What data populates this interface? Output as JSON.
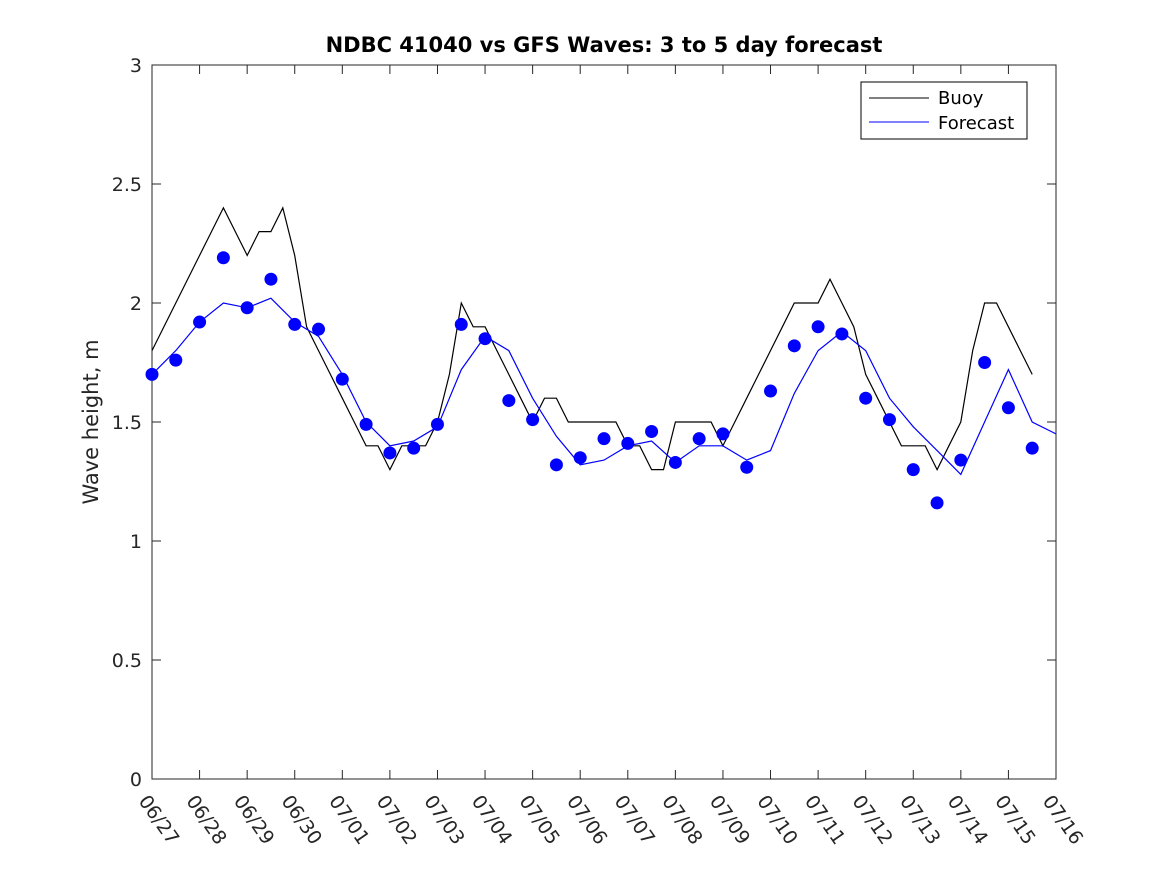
{
  "chart_data": {
    "type": "line",
    "title": "NDBC 41040 vs GFS Waves: 3 to 5 day forecast",
    "xlabel": "",
    "ylabel": "Wave height, m",
    "ylim": [
      0,
      3
    ],
    "yticks": [
      "0",
      "0.5",
      "1",
      "1.5",
      "2",
      "2.5",
      "3"
    ],
    "xlim": [
      "2024-06-27",
      "2024-07-16"
    ],
    "xtick_labels": [
      "06/27",
      "06/28",
      "06/29",
      "06/30",
      "07/01",
      "07/02",
      "07/03",
      "07/04",
      "07/05",
      "07/06",
      "07/07",
      "07/08",
      "07/09",
      "07/10",
      "07/11",
      "07/12",
      "07/13",
      "07/14",
      "07/15",
      "07/16"
    ],
    "grid": false,
    "legend_position": "top-right",
    "legend": [
      "Buoy",
      "Forecast"
    ],
    "colors": {
      "buoy": "#000000",
      "forecast": "#0000ff"
    },
    "series": [
      {
        "name": "Buoy",
        "x": [
          "06/27 00:00",
          "06/27 12:00",
          "06/28 00:00",
          "06/28 06:00",
          "06/28 12:00",
          "06/28 18:00",
          "06/29 00:00",
          "06/29 06:00",
          "06/29 12:00",
          "06/29 18:00",
          "06/30 00:00",
          "06/30 06:00",
          "06/30 12:00",
          "06/30 18:00",
          "07/01 00:00",
          "07/01 06:00",
          "07/01 12:00",
          "07/01 18:00",
          "07/02 00:00",
          "07/02 06:00",
          "07/02 12:00",
          "07/02 18:00",
          "07/03 00:00",
          "07/03 06:00",
          "07/03 12:00",
          "07/03 18:00",
          "07/04 00:00",
          "07/04 06:00",
          "07/04 12:00",
          "07/04 18:00",
          "07/05 00:00",
          "07/05 06:00",
          "07/05 12:00",
          "07/05 18:00",
          "07/06 00:00",
          "07/06 06:00",
          "07/06 12:00",
          "07/06 18:00",
          "07/07 00:00",
          "07/07 06:00",
          "07/07 12:00",
          "07/07 18:00",
          "07/08 00:00",
          "07/08 06:00",
          "07/08 12:00",
          "07/08 18:00",
          "07/09 00:00",
          "07/09 06:00",
          "07/09 12:00",
          "07/09 18:00",
          "07/10 00:00",
          "07/10 06:00",
          "07/10 12:00",
          "07/10 18:00",
          "07/11 00:00",
          "07/11 06:00",
          "07/11 12:00",
          "07/11 18:00",
          "07/12 00:00",
          "07/12 06:00",
          "07/12 12:00",
          "07/12 18:00",
          "07/13 00:00",
          "07/13 06:00",
          "07/13 12:00",
          "07/13 18:00",
          "07/14 00:00",
          "07/14 06:00",
          "07/14 12:00",
          "07/14 18:00",
          "07/15 00:00",
          "07/15 06:00",
          "07/15 12:00"
        ],
        "y": [
          1.8,
          2.0,
          2.2,
          2.3,
          2.4,
          2.3,
          2.2,
          2.3,
          2.3,
          2.4,
          2.2,
          1.9,
          1.8,
          1.7,
          1.6,
          1.5,
          1.4,
          1.4,
          1.3,
          1.4,
          1.4,
          1.4,
          1.5,
          1.7,
          2.0,
          1.9,
          1.9,
          1.8,
          1.7,
          1.6,
          1.5,
          1.6,
          1.6,
          1.5,
          1.5,
          1.5,
          1.5,
          1.5,
          1.4,
          1.4,
          1.3,
          1.3,
          1.5,
          1.5,
          1.5,
          1.5,
          1.4,
          1.5,
          1.6,
          1.7,
          1.8,
          1.9,
          2.0,
          2.0,
          2.0,
          2.1,
          2.0,
          1.9,
          1.7,
          1.6,
          1.5,
          1.4,
          1.4,
          1.4,
          1.3,
          1.4,
          1.5,
          1.8,
          2.0,
          2.0,
          1.9,
          1.8,
          1.7
        ]
      },
      {
        "name": "Forecast",
        "x": [
          "06/27 00:00",
          "06/27 12:00",
          "06/28 00:00",
          "06/28 12:00",
          "06/29 00:00",
          "06/29 12:00",
          "06/30 00:00",
          "06/30 12:00",
          "07/01 00:00",
          "07/01 12:00",
          "07/02 00:00",
          "07/02 12:00",
          "07/03 00:00",
          "07/03 12:00",
          "07/04 00:00",
          "07/04 12:00",
          "07/05 00:00",
          "07/05 12:00",
          "07/06 00:00",
          "07/06 12:00",
          "07/07 00:00",
          "07/07 12:00",
          "07/08 00:00",
          "07/08 12:00",
          "07/09 00:00",
          "07/09 12:00",
          "07/10 00:00",
          "07/10 12:00",
          "07/11 00:00",
          "07/11 12:00",
          "07/12 00:00",
          "07/12 12:00",
          "07/13 00:00",
          "07/13 12:00",
          "07/14 00:00",
          "07/14 12:00",
          "07/15 00:00",
          "07/15 12:00",
          "07/16 00:00"
        ],
        "y": [
          1.7,
          1.8,
          1.92,
          2.0,
          1.98,
          2.02,
          1.92,
          1.86,
          1.7,
          1.5,
          1.4,
          1.42,
          1.48,
          1.72,
          1.86,
          1.8,
          1.6,
          1.44,
          1.32,
          1.34,
          1.4,
          1.42,
          1.33,
          1.4,
          1.4,
          1.34,
          1.38,
          1.62,
          1.8,
          1.88,
          1.8,
          1.6,
          1.48,
          1.38,
          1.28,
          1.5,
          1.72,
          1.5,
          1.45
        ]
      },
      {
        "name": "",
        "marker": "circle",
        "x": [
          "06/27 00:00",
          "06/27 12:00",
          "06/28 00:00",
          "06/28 12:00",
          "06/29 00:00",
          "06/29 12:00",
          "06/30 00:00",
          "06/30 12:00",
          "07/01 00:00",
          "07/01 12:00",
          "07/02 00:00",
          "07/02 12:00",
          "07/03 00:00",
          "07/03 12:00",
          "07/04 00:00",
          "07/04 12:00",
          "07/05 00:00",
          "07/05 12:00",
          "07/06 00:00",
          "07/06 12:00",
          "07/07 00:00",
          "07/07 12:00",
          "07/08 00:00",
          "07/08 12:00",
          "07/09 00:00",
          "07/09 12:00",
          "07/10 00:00",
          "07/10 12:00",
          "07/11 00:00",
          "07/11 12:00",
          "07/12 00:00",
          "07/12 12:00",
          "07/13 00:00",
          "07/13 12:00",
          "07/14 00:00",
          "07/14 12:00",
          "07/15 00:00",
          "07/15 12:00"
        ],
        "y": [
          1.7,
          1.76,
          1.92,
          2.19,
          1.98,
          2.1,
          1.91,
          1.89,
          1.68,
          1.49,
          1.37,
          1.39,
          1.49,
          1.91,
          1.85,
          1.59,
          1.51,
          1.32,
          1.35,
          1.43,
          1.41,
          1.46,
          1.33,
          1.43,
          1.45,
          1.31,
          1.63,
          1.82,
          1.9,
          1.87,
          1.6,
          1.51,
          1.3,
          1.16,
          1.34,
          1.75,
          1.56,
          1.39
        ]
      }
    ]
  }
}
